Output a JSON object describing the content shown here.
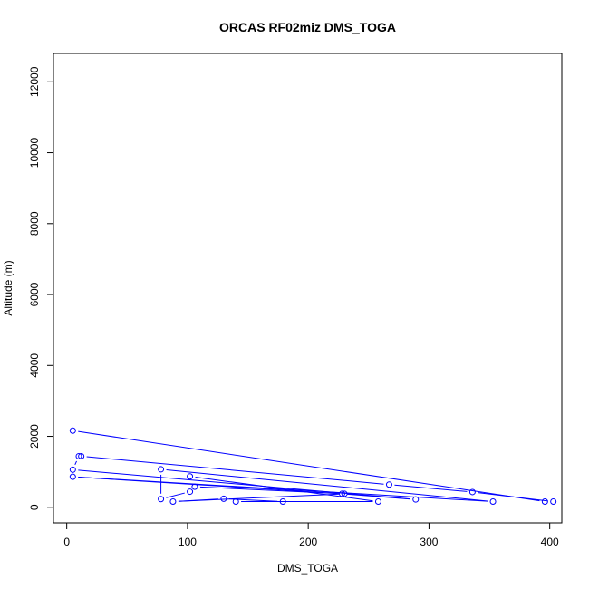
{
  "chart_data": {
    "type": "line",
    "title": "ORCAS RF02miz DMS_TOGA",
    "xlabel": "DMS_TOGA",
    "ylabel": "Altitude (m)",
    "xlim": [
      -11,
      410
    ],
    "ylim": [
      -440,
      12800
    ],
    "xticks": [
      0,
      100,
      200,
      300,
      400
    ],
    "yticks": [
      0,
      2000,
      4000,
      6000,
      8000,
      10000,
      12000
    ],
    "grid": false,
    "legend": "none",
    "series_color": "#0000ff",
    "marker": "open-circle",
    "series": [
      {
        "points": [
          [
            5,
            2160
          ],
          [
            396,
            160
          ],
          [
            403,
            160
          ],
          [
            336,
            430
          ],
          [
            267,
            640
          ],
          [
            12,
            1440
          ],
          [
            10,
            1440
          ],
          [
            5,
            1060
          ],
          [
            289,
            220
          ],
          [
            228,
            380
          ],
          [
            5,
            860
          ],
          [
            353,
            160
          ],
          [
            78,
            1070
          ],
          [
            78,
            230
          ],
          [
            102,
            440
          ],
          [
            106,
            580
          ],
          [
            230,
            380
          ],
          [
            88,
            160
          ],
          [
            130,
            240
          ],
          [
            179,
            160
          ],
          [
            140,
            160
          ],
          [
            258,
            160
          ],
          [
            102,
            870
          ]
        ]
      }
    ]
  }
}
